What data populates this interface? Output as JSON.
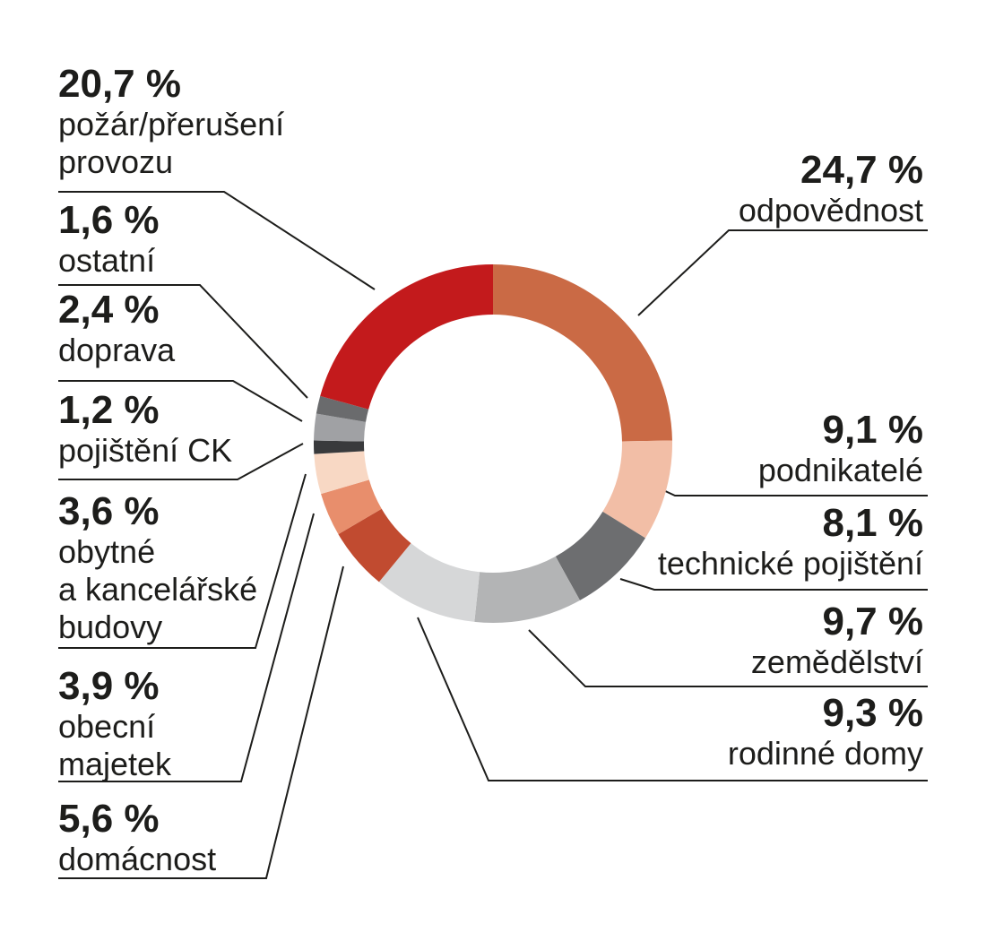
{
  "chart_data": {
    "type": "pie",
    "variant": "donut",
    "title": "",
    "unit": "%",
    "decimal_separator": ",",
    "start_angle_deg": 0,
    "direction": "clockwise",
    "hole_color": "#ffffff",
    "line_color": "#1d1d1b",
    "text_color": "#1d1d1b",
    "segments": [
      {
        "id": "odpovednost",
        "label": "odpovědnost",
        "value": 24.7,
        "value_text": "24,7 %",
        "color": "#ca6a45",
        "lines": [
          "odpovědnost"
        ]
      },
      {
        "id": "podnikatele",
        "label": "podnikatelé",
        "value": 9.1,
        "value_text": "9,1 %",
        "color": "#f2bea6",
        "lines": [
          "podnikatelé"
        ]
      },
      {
        "id": "technicke-pojisteni",
        "label": "technické pojištění",
        "value": 8.1,
        "value_text": "8,1 %",
        "color": "#6d6e70",
        "lines": [
          "technické pojištění"
        ]
      },
      {
        "id": "zemedelstvi",
        "label": "zemědělství",
        "value": 9.7,
        "value_text": "9,7 %",
        "color": "#b3b4b5",
        "lines": [
          "zemědělství"
        ]
      },
      {
        "id": "rodinne-domy",
        "label": "rodinné domy",
        "value": 9.3,
        "value_text": "9,3 %",
        "color": "#d6d7d8",
        "lines": [
          "rodinné domy"
        ]
      },
      {
        "id": "domacnost",
        "label": "domácnost",
        "value": 5.6,
        "value_text": "5,6 %",
        "color": "#c14b30",
        "lines": [
          "domácnost"
        ]
      },
      {
        "id": "obecni-majetek",
        "label": "obecní majetek",
        "value": 3.9,
        "value_text": "3,9 %",
        "color": "#e88e6c",
        "lines": [
          "obecní",
          "majetek"
        ]
      },
      {
        "id": "obytne-a-kancelarske-budovy",
        "label": "obytné a kancelářské budovy",
        "value": 3.6,
        "value_text": "3,6 %",
        "color": "#f8d8c4",
        "lines": [
          "obytné",
          "a kancelářské",
          "budovy"
        ]
      },
      {
        "id": "pojisteni-ck",
        "label": "pojištění CK",
        "value": 1.2,
        "value_text": "1,2 %",
        "color": "#393a3c",
        "lines": [
          "pojištění CK"
        ]
      },
      {
        "id": "doprava",
        "label": "doprava",
        "value": 2.4,
        "value_text": "2,4 %",
        "color": "#a0a1a4",
        "lines": [
          "doprava"
        ]
      },
      {
        "id": "ostatni",
        "label": "ostatní",
        "value": 1.6,
        "value_text": "1,6 %",
        "color": "#6a6b6d",
        "lines": [
          "ostatní"
        ]
      },
      {
        "id": "pozar-preruseni-provozu",
        "label": "požár/přerušení provozu",
        "value": 20.7,
        "value_text": "20,7 %",
        "color": "#c31a1c",
        "lines": [
          "požár/přerušení",
          "provozu"
        ]
      }
    ]
  }
}
